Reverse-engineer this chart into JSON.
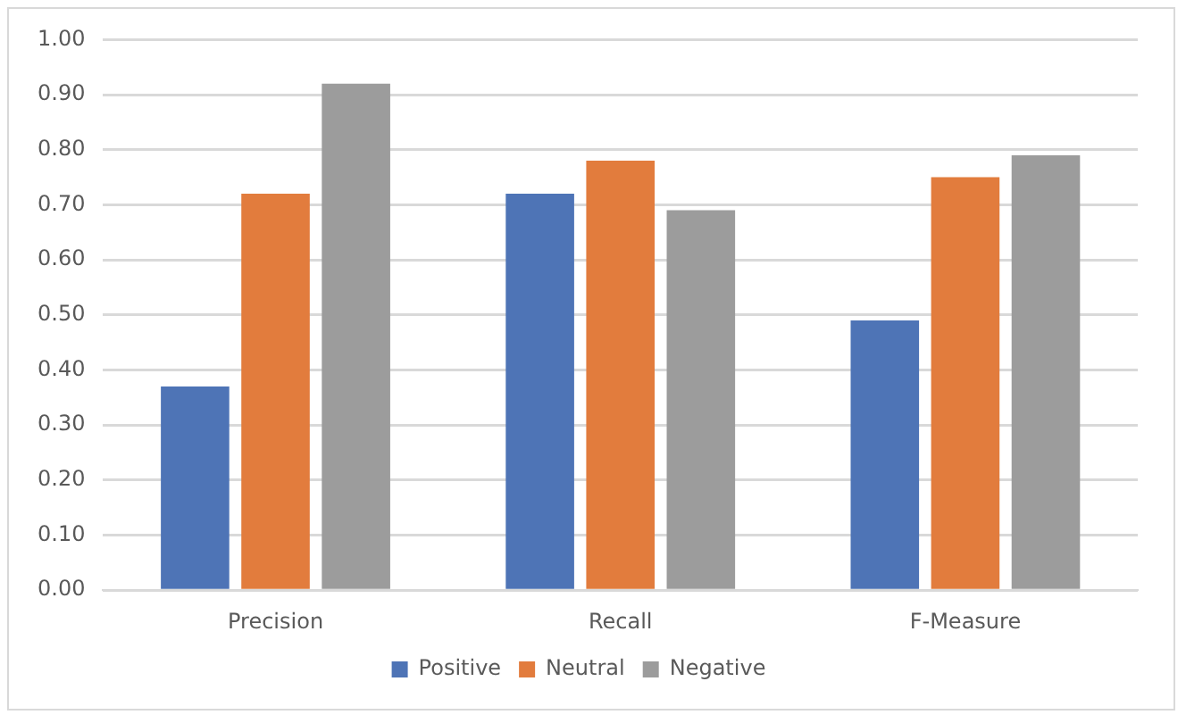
{
  "chart_data": {
    "type": "bar",
    "categories": [
      "Precision",
      "Recall",
      "F-Measure"
    ],
    "series": [
      {
        "name": "Positive",
        "color": "#4e74b6",
        "values": [
          0.37,
          0.72,
          0.49
        ]
      },
      {
        "name": "Neutral",
        "color": "#e27c3d",
        "values": [
          0.72,
          0.78,
          0.75
        ]
      },
      {
        "name": "Negative",
        "color": "#9c9c9c",
        "values": [
          0.92,
          0.69,
          0.79
        ]
      }
    ],
    "ylim": [
      0,
      1
    ],
    "yticks": [
      {
        "value": 0,
        "label": "0.00"
      },
      {
        "value": 0.1,
        "label": "0.10"
      },
      {
        "value": 0.2,
        "label": "0.20"
      },
      {
        "value": 0.3,
        "label": "0.30"
      },
      {
        "value": 0.4,
        "label": "0.40"
      },
      {
        "value": 0.5,
        "label": "0.50"
      },
      {
        "value": 0.6,
        "label": "0.60"
      },
      {
        "value": 0.7,
        "label": "0.70"
      },
      {
        "value": 0.8,
        "label": "0.80"
      },
      {
        "value": 0.9,
        "label": "0.90"
      },
      {
        "value": 1,
        "label": "1.00"
      }
    ],
    "grid": "y",
    "legend": "bottom"
  }
}
